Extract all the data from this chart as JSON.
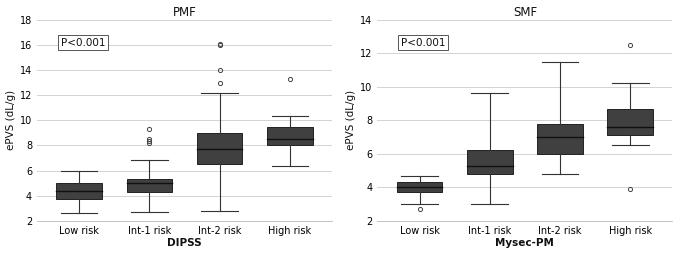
{
  "pmf": {
    "title": "PMF",
    "xlabel": "DIPSS",
    "ylabel": "ePVS (dL/g)",
    "ylim": [
      2,
      18
    ],
    "yticks": [
      2,
      4,
      6,
      8,
      10,
      12,
      14,
      16,
      18
    ],
    "categories": [
      "Low risk",
      "Int-1 risk",
      "Int-2 risk",
      "High risk"
    ],
    "boxes": [
      {
        "q1": 3.7,
        "median": 4.4,
        "q3": 5.0,
        "whislo": 2.6,
        "whishi": 6.0,
        "fliers": []
      },
      {
        "q1": 4.3,
        "median": 5.0,
        "q3": 5.3,
        "whislo": 2.7,
        "whishi": 6.8,
        "fliers": [
          8.2,
          8.35,
          8.5,
          9.3
        ]
      },
      {
        "q1": 6.5,
        "median": 7.7,
        "q3": 9.0,
        "whislo": 2.8,
        "whishi": 12.2,
        "fliers": [
          13.0,
          14.0,
          16.0,
          16.1
        ]
      },
      {
        "q1": 8.0,
        "median": 8.5,
        "q3": 9.5,
        "whislo": 6.4,
        "whishi": 10.3,
        "fliers": [
          13.3
        ]
      }
    ],
    "pvalue": "P<0.001"
  },
  "smf": {
    "title": "SMF",
    "xlabel": "Mysec-PM",
    "ylabel": "ePVS (dL/g)",
    "ylim": [
      2,
      14
    ],
    "yticks": [
      2,
      4,
      6,
      8,
      10,
      12,
      14
    ],
    "categories": [
      "Low risk",
      "Int-1 risk",
      "Int-2 risk",
      "High risk"
    ],
    "boxes": [
      {
        "q1": 3.7,
        "median": 4.0,
        "q3": 4.3,
        "whislo": 3.0,
        "whishi": 4.7,
        "fliers": [
          2.7
        ]
      },
      {
        "q1": 4.8,
        "median": 5.3,
        "q3": 6.2,
        "whislo": 3.0,
        "whishi": 9.6,
        "fliers": []
      },
      {
        "q1": 6.0,
        "median": 7.0,
        "q3": 7.8,
        "whislo": 4.8,
        "whishi": 11.5,
        "fliers": []
      },
      {
        "q1": 7.1,
        "median": 7.6,
        "q3": 8.7,
        "whislo": 6.5,
        "whishi": 10.2,
        "fliers": [
          3.9,
          12.5
        ]
      }
    ],
    "pvalue": "P<0.001"
  },
  "box_color": "#404040",
  "box_edge_color": "#222222",
  "median_color": "#111111",
  "whisker_color": "#333333",
  "flier_color": "#444444",
  "background_color": "#ffffff",
  "plot_bg_color": "#ffffff",
  "grid_color": "#cccccc",
  "title_fontsize": 8.5,
  "label_fontsize": 7.5,
  "tick_fontsize": 7,
  "pvalue_fontsize": 7.5,
  "box_width": 0.65
}
